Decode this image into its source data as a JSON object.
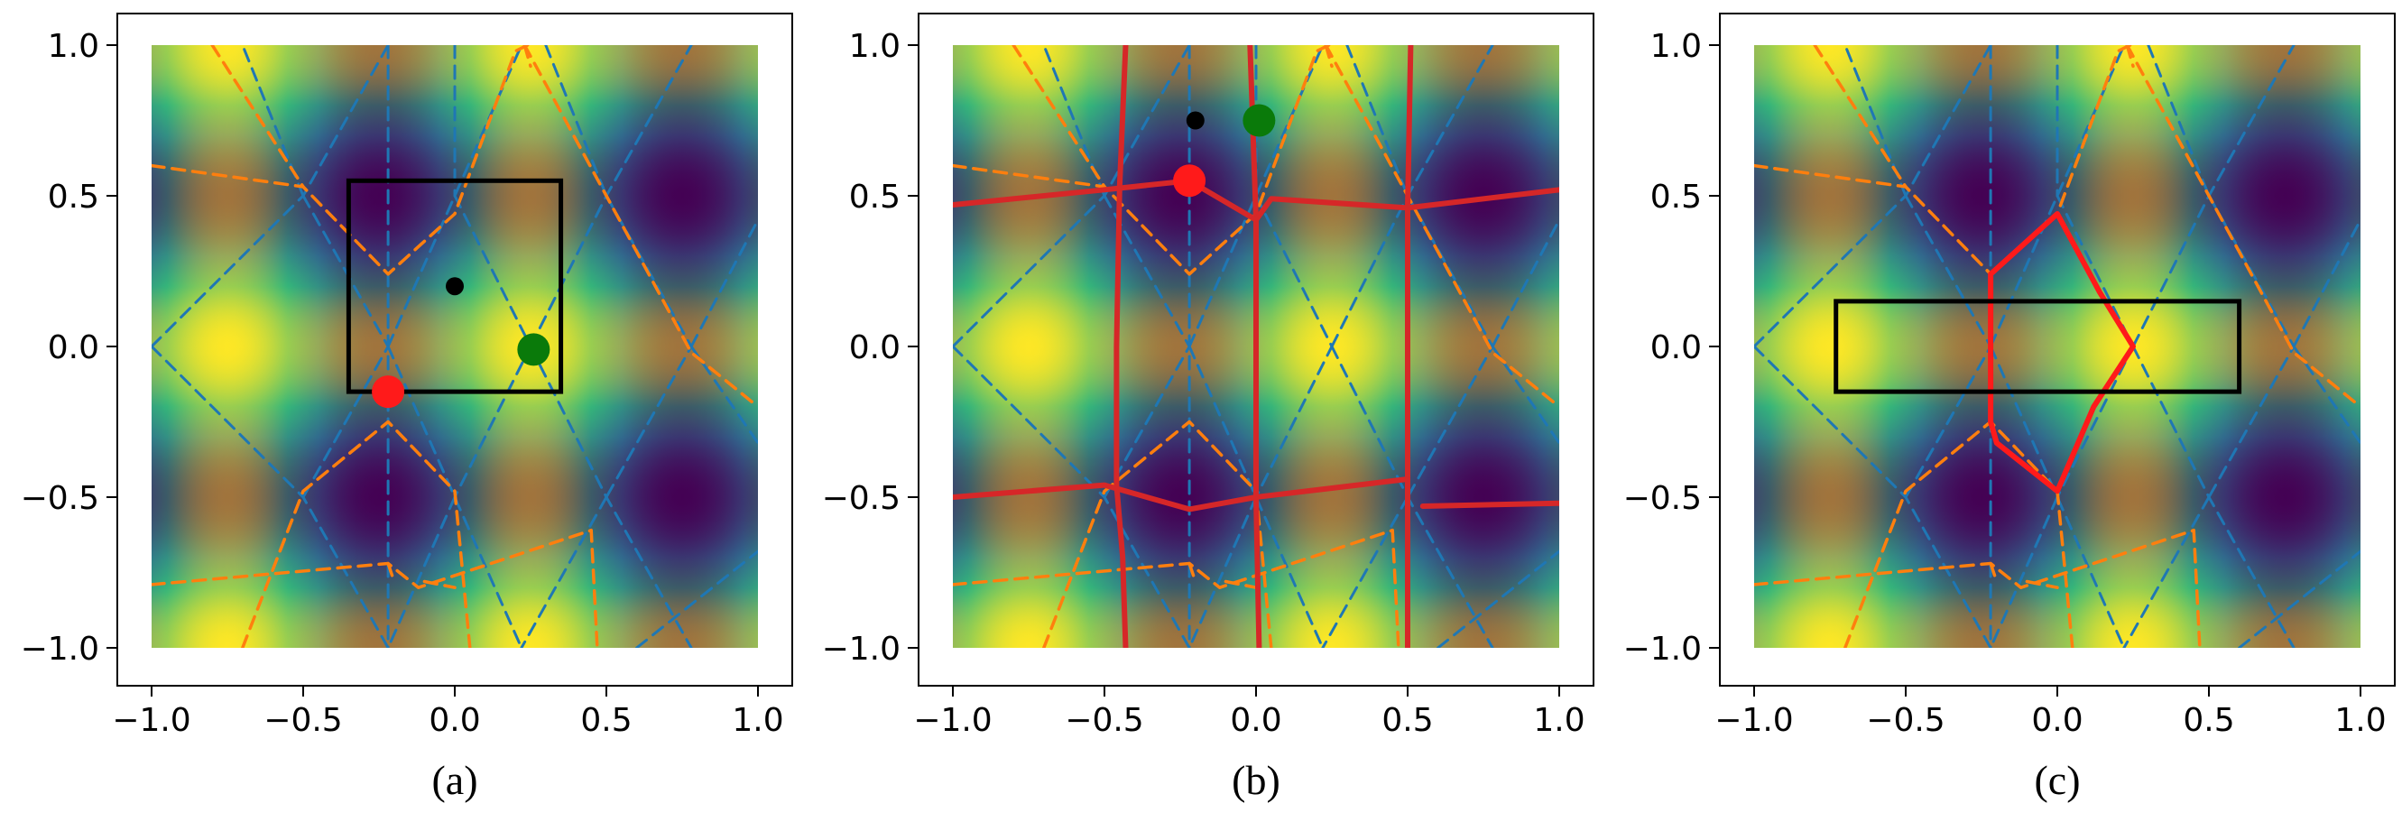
{
  "chart_data": [
    {
      "type": "heatmap",
      "caption": "(a)",
      "xlim": [
        -1,
        1
      ],
      "ylim": [
        -1,
        1
      ],
      "x_ticks": [
        "−1.0",
        "−0.5",
        "0.0",
        "0.5",
        "1.0"
      ],
      "y_ticks": [
        "−1.0",
        "−0.5",
        "0.0",
        "0.5",
        "1.0"
      ],
      "colormap": [
        "#440154",
        "#31688e",
        "#35b779",
        "#fde725"
      ],
      "field": {
        "fx": "cos2pi(x-0.25)",
        "fy": "cos2pi(y)"
      },
      "rectangles": [
        {
          "x0": -0.35,
          "y0": -0.15,
          "x1": 0.35,
          "y1": 0.55,
          "color": "#000000"
        }
      ],
      "points": [
        {
          "x": 0.0,
          "y": 0.2,
          "color": "#000000",
          "size": "small"
        },
        {
          "x": 0.26,
          "y": -0.01,
          "color": "#0a7a0a",
          "size": "large"
        },
        {
          "x": -0.22,
          "y": -0.15,
          "color": "#ff1a1a",
          "size": "large"
        }
      ],
      "solid_polylines": []
    },
    {
      "type": "heatmap",
      "caption": "(b)",
      "xlim": [
        -1,
        1
      ],
      "ylim": [
        -1,
        1
      ],
      "x_ticks": [
        "−1.0",
        "−0.5",
        "0.0",
        "0.5",
        "1.0"
      ],
      "y_ticks": [
        "−1.0",
        "−0.5",
        "0.0",
        "0.5",
        "1.0"
      ],
      "colormap": [
        "#440154",
        "#31688e",
        "#35b779",
        "#fde725"
      ],
      "field": {
        "fx": "cos2pi(x-0.25)",
        "fy": "cos2pi(y)"
      },
      "rectangles": [],
      "points": [
        {
          "x": -0.2,
          "y": 0.75,
          "color": "#000000",
          "size": "small"
        },
        {
          "x": 0.01,
          "y": 0.75,
          "color": "#0a7a0a",
          "size": "large"
        },
        {
          "x": -0.22,
          "y": 0.55,
          "color": "#ff1a1a",
          "size": "large"
        }
      ],
      "solid_polylines": [
        {
          "color": "#d62728",
          "points": [
            [
              -0.43,
              1.0
            ],
            [
              -0.45,
              0.53
            ],
            [
              -0.46,
              0.0
            ],
            [
              -0.46,
              -0.46
            ],
            [
              -0.44,
              -0.7
            ],
            [
              -0.43,
              -1.0
            ]
          ]
        },
        {
          "color": "#d62728",
          "points": [
            [
              -0.02,
              1.0
            ],
            [
              0.0,
              0.42
            ],
            [
              0.0,
              0.0
            ],
            [
              0.0,
              -0.5
            ],
            [
              0.01,
              -1.0
            ]
          ]
        },
        {
          "color": "#d62728",
          "points": [
            [
              0.51,
              1.0
            ],
            [
              0.5,
              0.46
            ],
            [
              0.5,
              0.0
            ],
            [
              0.5,
              -0.44
            ],
            [
              0.5,
              -0.53
            ],
            [
              0.5,
              -1.0
            ]
          ]
        },
        {
          "color": "#d62728",
          "points": [
            [
              -1.0,
              0.47
            ],
            [
              -0.5,
              0.52
            ],
            [
              -0.22,
              0.55
            ],
            [
              0.0,
              0.42
            ],
            [
              0.05,
              0.49
            ],
            [
              0.5,
              0.46
            ],
            [
              1.0,
              0.52
            ]
          ]
        },
        {
          "color": "#d62728",
          "points": [
            [
              -1.0,
              -0.5
            ],
            [
              -0.5,
              -0.46
            ],
            [
              -0.22,
              -0.54
            ],
            [
              0.0,
              -0.5
            ],
            [
              0.5,
              -0.44
            ]
          ]
        },
        {
          "color": "#d62728",
          "points": [
            [
              0.55,
              -0.53
            ],
            [
              1.0,
              -0.52
            ]
          ]
        },
        {
          "color": "#d62728",
          "points": [
            [
              0.5,
              -0.53
            ],
            [
              0.5,
              -1.0
            ]
          ]
        }
      ]
    },
    {
      "type": "heatmap",
      "caption": "(c)",
      "xlim": [
        -1,
        1
      ],
      "ylim": [
        -1,
        1
      ],
      "x_ticks": [
        "−1.0",
        "−0.5",
        "0.0",
        "0.5",
        "1.0"
      ],
      "y_ticks": [
        "−1.0",
        "−0.5",
        "0.0",
        "0.5",
        "1.0"
      ],
      "colormap": [
        "#440154",
        "#31688e",
        "#35b779",
        "#fde725"
      ],
      "field": {
        "fx": "cos2pi(x-0.25)",
        "fy": "cos2pi(y)"
      },
      "rectangles": [
        {
          "x0": -0.73,
          "y0": -0.15,
          "x1": 0.6,
          "y1": 0.15,
          "color": "#000000"
        }
      ],
      "points": [],
      "solid_polylines": [
        {
          "color": "#ff1a1a",
          "points": [
            [
              -0.22,
              0.24
            ],
            [
              0.0,
              0.44
            ],
            [
              0.14,
              0.18
            ],
            [
              0.25,
              0.0
            ],
            [
              0.12,
              -0.2
            ],
            [
              0.0,
              -0.48
            ],
            [
              -0.2,
              -0.32
            ],
            [
              -0.22,
              -0.25
            ],
            [
              -0.22,
              0.24
            ]
          ]
        }
      ]
    }
  ],
  "shared_overlays": {
    "blue_dashed_color": "#1f77b4",
    "orange_dashed_color": "#ff7f0e",
    "blue_dashed_lines": [
      [
        [
          -1.0,
          0.0
        ],
        [
          -0.5,
          0.5
        ],
        [
          -0.22,
          1.0
        ]
      ],
      [
        [
          -1.0,
          0.0
        ],
        [
          -0.5,
          -0.5
        ],
        [
          -0.22,
          -1.0
        ]
      ],
      [
        [
          -0.5,
          0.5
        ],
        [
          -0.22,
          0.0
        ],
        [
          -0.5,
          -0.5
        ]
      ],
      [
        [
          -0.22,
          1.0
        ],
        [
          -0.22,
          -1.0
        ]
      ],
      [
        [
          -0.5,
          0.5
        ],
        [
          -0.7,
          1.0
        ]
      ],
      [
        [
          -0.22,
          0.0
        ],
        [
          0.0,
          0.5
        ],
        [
          0.22,
          1.0
        ]
      ],
      [
        [
          -0.22,
          0.0
        ],
        [
          0.0,
          -0.5
        ],
        [
          0.22,
          -1.0
        ]
      ],
      [
        [
          0.0,
          0.5
        ],
        [
          0.25,
          0.0
        ],
        [
          0.0,
          -0.5
        ]
      ],
      [
        [
          0.0,
          1.0
        ],
        [
          0.0,
          0.5
        ]
      ],
      [
        [
          0.25,
          0.0
        ],
        [
          0.5,
          0.5
        ],
        [
          0.78,
          1.0
        ]
      ],
      [
        [
          0.25,
          0.0
        ],
        [
          0.5,
          -0.5
        ],
        [
          0.78,
          -1.0
        ]
      ],
      [
        [
          0.5,
          0.5
        ],
        [
          0.78,
          0.0
        ],
        [
          0.5,
          -0.5
        ]
      ],
      [
        [
          0.78,
          0.0
        ],
        [
          1.0,
          0.42
        ]
      ],
      [
        [
          0.78,
          0.0
        ],
        [
          1.0,
          -0.32
        ]
      ],
      [
        [
          0.5,
          -0.5
        ],
        [
          0.22,
          -1.0
        ]
      ],
      [
        [
          0.0,
          -0.5
        ],
        [
          -0.22,
          -1.0
        ]
      ],
      [
        [
          0.6,
          -1.0
        ],
        [
          1.0,
          -0.68
        ]
      ],
      [
        [
          0.3,
          1.0
        ],
        [
          0.5,
          0.5
        ]
      ]
    ],
    "orange_dashed_lines": [
      [
        [
          -1.0,
          0.6
        ],
        [
          -0.5,
          0.53
        ],
        [
          -0.22,
          0.24
        ],
        [
          0.0,
          0.44
        ],
        [
          0.2,
          0.98
        ],
        [
          0.24,
          1.0
        ]
      ],
      [
        [
          0.23,
          1.0
        ],
        [
          0.5,
          0.5
        ],
        [
          0.78,
          -0.02
        ],
        [
          1.0,
          -0.2
        ]
      ],
      [
        [
          -0.8,
          1.0
        ],
        [
          -0.5,
          0.53
        ]
      ],
      [
        [
          0.23,
          1.0
        ],
        [
          0.25,
          0.93
        ]
      ],
      [
        [
          -0.7,
          -1.0
        ],
        [
          -0.5,
          -0.48
        ],
        [
          -0.22,
          -0.25
        ],
        [
          0.0,
          -0.48
        ],
        [
          0.05,
          -1.0
        ]
      ],
      [
        [
          -1.0,
          -0.79
        ],
        [
          -0.22,
          -0.72
        ],
        [
          -0.12,
          -0.8
        ],
        [
          0.45,
          -0.61
        ],
        [
          0.47,
          -1.0
        ]
      ],
      [
        [
          -0.22,
          -0.72
        ],
        [
          -0.2,
          -0.78
        ]
      ],
      [
        [
          -0.1,
          -0.78
        ],
        [
          0.0,
          -0.8
        ]
      ]
    ]
  }
}
